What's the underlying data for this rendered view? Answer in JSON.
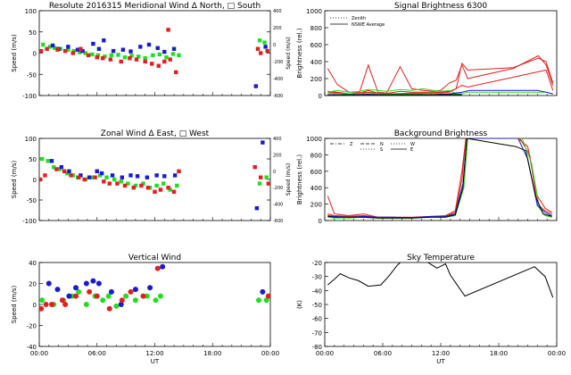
{
  "chart_data": [
    {
      "id": "meridional",
      "type": "scatter",
      "title": "Resolute  2016315    Meridional Wind   Δ North, □ South",
      "xlabel": "",
      "ylabel": "Speed (m/s)",
      "y2label": "Speed (m/s)",
      "ylim": [
        -100,
        100
      ],
      "y2lim": [
        -600,
        400
      ],
      "xlim": [
        0,
        24
      ],
      "yticks": [
        "-100",
        "-50",
        "0",
        "50",
        "100"
      ],
      "y2ticks": [
        "-600",
        "-400",
        "-200",
        "0",
        "200",
        "400"
      ],
      "xticks": [
        "",
        "",
        "",
        "",
        ""
      ],
      "colors": {
        "red": "#e02020",
        "green": "#22dd22",
        "blue": "#1a1ad0"
      },
      "series": [
        {
          "color": "green",
          "x": [
            0.4,
            1.1,
            1.6,
            2.2,
            3.0,
            3.6,
            4.2,
            4.8,
            5.5,
            6.1,
            6.8,
            7.5,
            8.2,
            8.9,
            9.6,
            10.3,
            11.0,
            11.8,
            12.5,
            13.2,
            13.9,
            14.5,
            22.9,
            23.4
          ],
          "y": [
            20,
            15,
            12,
            10,
            8,
            5,
            2,
            0,
            -3,
            -5,
            -8,
            -5,
            -4,
            -10,
            -6,
            -8,
            -12,
            -5,
            -3,
            -10,
            -2,
            -5,
            30,
            25
          ]
        },
        {
          "color": "blue",
          "x": [
            1.4,
            2.0,
            3.0,
            4.0,
            4.5,
            5.6,
            6.2,
            6.7,
            7.7,
            8.7,
            9.5,
            10.5,
            11.4,
            12.3,
            13.0,
            14.0,
            22.5,
            23.5
          ],
          "y": [
            18,
            10,
            15,
            8,
            5,
            22,
            10,
            30,
            5,
            8,
            4,
            15,
            20,
            12,
            3,
            10,
            -78,
            15
          ]
        },
        {
          "color": "red",
          "x": [
            0.2,
            0.8,
            1.9,
            2.7,
            3.5,
            4.3,
            5.1,
            6.0,
            6.6,
            7.4,
            8.5,
            9.4,
            10.1,
            11.0,
            11.7,
            12.4,
            13.0,
            13.6,
            14.2,
            22.7,
            23.0,
            23.7
          ],
          "y": [
            5,
            10,
            8,
            5,
            0,
            10,
            -5,
            -10,
            -12,
            -15,
            -20,
            -12,
            -15,
            -20,
            -25,
            -30,
            -20,
            -15,
            -45,
            10,
            0,
            5
          ]
        },
        {
          "color": "red",
          "x": [
            13.4
          ],
          "y": [
            55
          ]
        }
      ]
    },
    {
      "id": "signal",
      "type": "line",
      "title": "Signal Brightness       6300",
      "xlabel": "",
      "ylabel": "Brightness (rel.)",
      "ylim": [
        0,
        1000
      ],
      "xlim": [
        0,
        24
      ],
      "yticks": [
        "0",
        "200",
        "400",
        "600",
        "800",
        "1000"
      ],
      "xticks": [
        "",
        "",
        "",
        "",
        ""
      ],
      "legend": [
        {
          "name": "Zenith",
          "dash": "dotted"
        },
        {
          "name": "NSWE Average",
          "dash": "solid"
        }
      ],
      "series": [
        {
          "color": "#e02020",
          "x": [
            0.3,
            1.3,
            2.5,
            3.6,
            4.5,
            5.5,
            6.4,
            7.8,
            9.0,
            10.2,
            11.2,
            12.0,
            12.9,
            13.6,
            14.2,
            14.8,
            19.5,
            22.1,
            22.9,
            23.6
          ],
          "y": [
            320,
            130,
            40,
            40,
            360,
            40,
            30,
            340,
            80,
            60,
            50,
            60,
            150,
            180,
            360,
            200,
            320,
            470,
            360,
            120
          ]
        },
        {
          "color": "#e02020",
          "x": [
            0.3,
            1.3,
            2.5,
            3.6,
            4.5,
            5.5,
            6.4,
            7.8,
            9.0,
            10.2,
            11.2,
            12.0,
            12.9,
            13.6,
            14.2,
            14.8,
            19.5,
            22.1,
            22.9,
            23.6
          ],
          "y": [
            50,
            40,
            20,
            30,
            60,
            30,
            25,
            50,
            40,
            40,
            40,
            40,
            50,
            80,
            380,
            300,
            330,
            440,
            400,
            150
          ]
        },
        {
          "color": "#e02020",
          "x": [
            0.3,
            2.5,
            4.5,
            6.4,
            9.0,
            11.2,
            12.9,
            14.2,
            14.8,
            22.9,
            23.6
          ],
          "y": [
            40,
            20,
            40,
            20,
            30,
            30,
            40,
            120,
            100,
            300,
            60
          ]
        },
        {
          "color": "#22dd22",
          "x": [
            0.3,
            1.3,
            2.5,
            3.6,
            4.5,
            5.5,
            6.4,
            7.8,
            9.0,
            10.2,
            11.2,
            12.0,
            12.9,
            13.6,
            14.2,
            14.8,
            19.5,
            22.1,
            22.9,
            23.6
          ],
          "y": [
            40,
            60,
            40,
            50,
            70,
            60,
            50,
            70,
            60,
            80,
            60,
            50,
            60,
            20,
            20,
            40,
            40,
            40,
            40,
            20
          ]
        },
        {
          "color": "#22dd22",
          "x": [
            0.3,
            2.5,
            4.5,
            6.4,
            9.0,
            11.2,
            12.9,
            14.2
          ],
          "y": [
            30,
            20,
            30,
            20,
            20,
            25,
            20,
            20
          ]
        },
        {
          "color": "#1a1ad0",
          "x": [
            0.3,
            2.5,
            4.5,
            6.4,
            9.0,
            11.2,
            12.9,
            14.2,
            15.0,
            22.0,
            22.9,
            23.6
          ],
          "y": [
            10,
            10,
            15,
            10,
            10,
            10,
            20,
            40,
            60,
            60,
            40,
            20
          ]
        },
        {
          "color": "#000000",
          "x": [
            0.3,
            4.5,
            9.0,
            12.9,
            14.2
          ],
          "y": [
            10,
            10,
            10,
            10,
            10
          ]
        }
      ]
    },
    {
      "id": "zonal",
      "type": "scatter",
      "title": "Zonal Wind     Δ East, □ West",
      "xlabel": "",
      "ylabel": "Speed (m/s)",
      "y2label": "Speed (m/s)",
      "ylim": [
        -100,
        100
      ],
      "y2lim": [
        -600,
        400
      ],
      "xlim": [
        0,
        24
      ],
      "yticks": [
        "-100",
        "-50",
        "0",
        "50",
        "100"
      ],
      "y2ticks": [
        "-600",
        "-400",
        "-200",
        "0",
        "200",
        "400"
      ],
      "xticks": [
        "",
        "",
        "",
        "",
        ""
      ],
      "series": [
        {
          "color": "green",
          "x": [
            0.3,
            0.9,
            1.5,
            2.1,
            2.9,
            3.5,
            4.0,
            4.8,
            5.5,
            6.3,
            7.0,
            7.8,
            8.5,
            9.2,
            10.0,
            10.8,
            11.5,
            12.2,
            12.9,
            13.6,
            14.3,
            22.9,
            23.6
          ],
          "y": [
            50,
            45,
            30,
            25,
            15,
            10,
            5,
            0,
            5,
            10,
            5,
            0,
            -5,
            -10,
            -15,
            -10,
            -20,
            -15,
            -10,
            -25,
            -15,
            -10,
            5
          ]
        },
        {
          "color": "blue",
          "x": [
            1.3,
            2.3,
            3.1,
            4.3,
            5.2,
            6.0,
            6.5,
            7.6,
            8.6,
            9.5,
            10.2,
            11.2,
            12.2,
            13.0,
            14.1,
            22.6,
            23.2
          ],
          "y": [
            45,
            30,
            20,
            10,
            5,
            20,
            15,
            10,
            5,
            10,
            8,
            5,
            10,
            8,
            10,
            -70,
            90
          ]
        },
        {
          "color": "red",
          "x": [
            0.1,
            0.6,
            1.8,
            2.6,
            3.3,
            4.1,
            4.7,
            5.8,
            6.7,
            7.3,
            8.1,
            8.9,
            9.8,
            10.6,
            11.3,
            12.0,
            12.6,
            13.4,
            14.0,
            22.4,
            23.0,
            23.8
          ],
          "y": [
            0,
            10,
            25,
            20,
            10,
            5,
            0,
            5,
            -5,
            -10,
            -10,
            -15,
            -20,
            -15,
            -20,
            -30,
            -25,
            -20,
            -30,
            30,
            5,
            -10
          ]
        },
        {
          "color": "red",
          "x": [
            14.5
          ],
          "y": [
            20
          ]
        }
      ]
    },
    {
      "id": "background",
      "type": "line",
      "title": "Background Brightness",
      "xlabel": "",
      "ylabel": "Brightness (rel.)",
      "ylim": [
        0,
        1000
      ],
      "xlim": [
        0,
        24
      ],
      "yticks": [
        "0",
        "200",
        "400",
        "600",
        "800",
        "1000"
      ],
      "xticks": [
        "",
        "",
        "",
        "",
        ""
      ],
      "legend": [
        {
          "name": "Z",
          "dash": "dotdash"
        },
        {
          "name": "N",
          "dash": "dashed"
        },
        {
          "name": "S",
          "dash": "dotted"
        },
        {
          "name": "W",
          "dash": "dotted"
        },
        {
          "name": "E",
          "dash": "solid"
        }
      ],
      "series": [
        {
          "color": "#e02020",
          "x": [
            0.3,
            1.0,
            2.5,
            4.0,
            5.5,
            7.0,
            9.0,
            11.0,
            12.5,
            13.5,
            14.2,
            14.6,
            20.0,
            21.0,
            22.0,
            22.8,
            23.5
          ],
          "y": [
            300,
            80,
            60,
            80,
            40,
            40,
            30,
            50,
            60,
            120,
            600,
            1000,
            1000,
            900,
            300,
            150,
            100
          ]
        },
        {
          "color": "#e02020",
          "x": [
            0.3,
            1.0,
            2.5,
            4.0,
            5.5,
            7.0,
            9.0,
            11.0,
            12.5,
            13.5,
            14.2,
            14.6,
            20.2,
            21.2,
            22.0,
            22.8,
            23.5
          ],
          "y": [
            80,
            60,
            50,
            60,
            40,
            40,
            40,
            50,
            50,
            100,
            500,
            1000,
            1000,
            800,
            200,
            120,
            80
          ]
        },
        {
          "color": "#22dd22",
          "x": [
            0.3,
            1.0,
            2.5,
            4.0,
            5.5,
            7.0,
            9.0,
            11.0,
            12.5,
            13.5,
            14.4,
            14.8,
            20.4,
            21.4,
            22.2,
            22.8,
            23.5
          ],
          "y": [
            40,
            30,
            30,
            40,
            30,
            30,
            30,
            40,
            40,
            60,
            400,
            1000,
            1000,
            700,
            150,
            60,
            40
          ]
        },
        {
          "color": "#1a1ad0",
          "x": [
            0.3,
            1.0,
            2.5,
            4.0,
            5.5,
            7.0,
            9.0,
            11.0,
            12.5,
            13.5,
            14.3,
            14.7,
            20.0,
            21.0,
            22.0,
            22.8,
            23.5
          ],
          "y": [
            60,
            50,
            40,
            50,
            40,
            40,
            35,
            50,
            50,
            80,
            450,
            1000,
            1000,
            750,
            180,
            100,
            60
          ]
        },
        {
          "color": "#000000",
          "x": [
            0.3,
            1.0,
            2.5,
            4.0,
            5.5,
            7.0,
            9.0,
            11.0,
            12.5,
            13.5,
            14.3,
            14.7,
            19.8,
            20.8,
            21.8,
            22.6,
            23.5
          ],
          "y": [
            50,
            40,
            40,
            40,
            30,
            30,
            30,
            40,
            40,
            70,
            400,
            1000,
            900,
            850,
            300,
            80,
            50
          ]
        }
      ]
    },
    {
      "id": "vertical",
      "type": "scatter",
      "title": "Vertical Wind",
      "xlabel": "UT",
      "ylabel": "Speed (m/s)",
      "ylim": [
        -50,
        50
      ],
      "xlim": [
        0,
        24
      ],
      "yticks": [
        "-40",
        "-20",
        "0",
        "20",
        "40"
      ],
      "xticks": [
        "00:00",
        "06:00",
        "12:00",
        "18:00",
        "00:00"
      ],
      "series": [
        {
          "color": "green",
          "x": [
            0.3,
            1.5,
            2.5,
            3.4,
            4.1,
            4.9,
            5.8,
            6.6,
            7.2,
            8.0,
            9.0,
            10.0,
            11.2,
            12.1,
            12.6,
            22.8,
            23.6
          ],
          "y": [
            5,
            0,
            5,
            10,
            15,
            0,
            10,
            5,
            10,
            -2,
            10,
            5,
            10,
            5,
            10,
            5,
            5
          ]
        },
        {
          "color": "blue",
          "x": [
            1.0,
            1.9,
            3.1,
            3.8,
            4.9,
            5.6,
            6.2,
            7.5,
            8.5,
            10.0,
            11.5,
            12.8,
            23.2
          ],
          "y": [
            25,
            18,
            10,
            20,
            25,
            28,
            25,
            15,
            0,
            18,
            20,
            45,
            15
          ]
        },
        {
          "color": "red",
          "x": [
            0.2,
            0.7,
            1.3,
            2.4,
            2.7,
            3.8,
            5.2,
            6.0,
            7.3,
            8.6,
            9.5,
            10.8,
            12.3,
            23.8
          ],
          "y": [
            -5,
            0,
            0,
            5,
            0,
            10,
            15,
            10,
            -5,
            5,
            15,
            10,
            43,
            10
          ]
        }
      ]
    },
    {
      "id": "sky",
      "type": "line",
      "title": "Sky Temperature",
      "xlabel": "UT",
      "ylabel": "(K)",
      "ylim": [
        -80,
        -20
      ],
      "xlim": [
        0,
        24
      ],
      "yticks": [
        "-80",
        "-70",
        "-60",
        "-50",
        "-40",
        "-30",
        "-20"
      ],
      "xticks": [
        "00:00",
        "06:00",
        "12:00",
        "18:00",
        "00:00"
      ],
      "series": [
        {
          "color": "#000000",
          "x": [
            0.3,
            1.0,
            1.6,
            2.5,
            3.5,
            4.5,
            5.8,
            6.6,
            7.5,
            8.1,
            10.0,
            11.6,
            12.5,
            13.0,
            14.5,
            21.7,
            22.8,
            23.6
          ],
          "y": [
            -36,
            -32,
            -28,
            -31,
            -33,
            -37,
            -36,
            -30,
            -22,
            -18,
            -17,
            -24,
            -21,
            -29,
            -44,
            -23,
            -30,
            -45
          ]
        }
      ]
    }
  ]
}
